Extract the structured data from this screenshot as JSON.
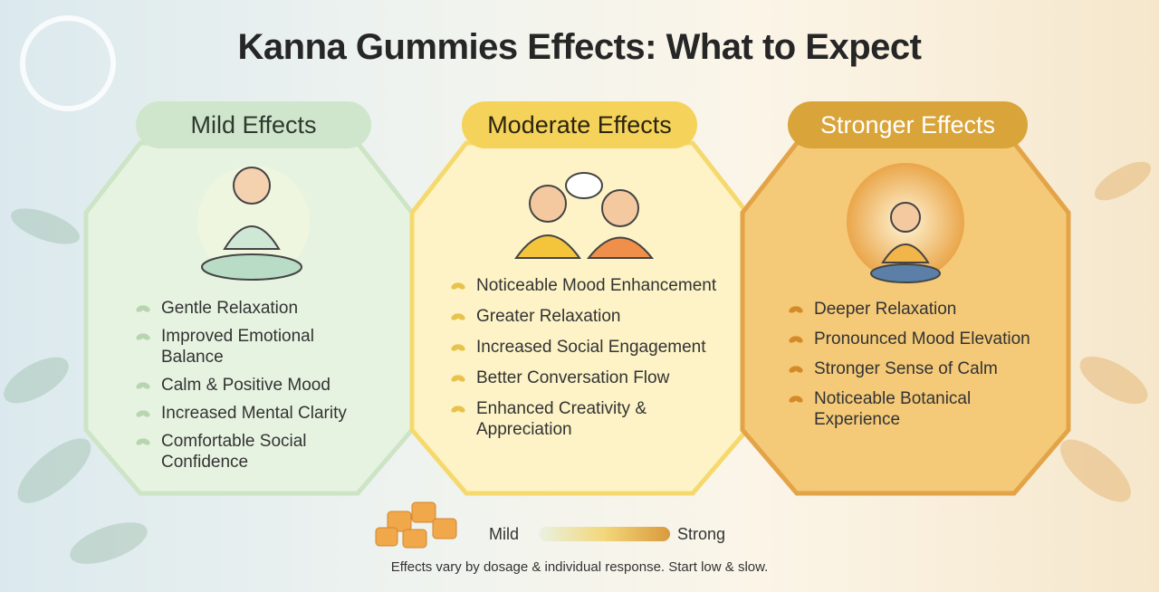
{
  "title": "Kanna Gummies Effects: What to Expect",
  "panels": [
    {
      "heading": "Mild Effects",
      "items": [
        "Gentle Relaxation",
        "Improved Emotional Balance",
        "Calm & Positive Mood",
        "Increased Mental Clarity",
        "Comfortable Social Confidence"
      ]
    },
    {
      "heading": "Moderate Effects",
      "items": [
        "Noticeable Mood Enhancement",
        "Greater Relaxation",
        "Increased Social Engagement",
        "Better Conversation Flow",
        "Enhanced Creativity & Appreciation"
      ]
    },
    {
      "heading": "Stronger Effects",
      "items": [
        "Deeper Relaxation",
        "Pronounced Mood Elevation",
        "Stronger Sense of Calm",
        "Noticeable Botanical Experience"
      ]
    }
  ],
  "scale": {
    "low": "Mild",
    "high": "Strong"
  },
  "footnote": "Effects vary by dosage & individual response. Start low & slow."
}
